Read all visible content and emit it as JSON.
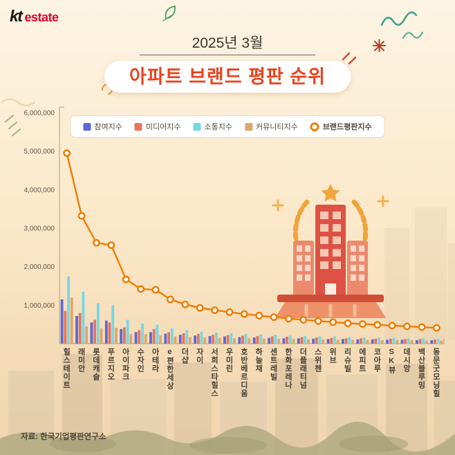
{
  "header": {
    "logo_kt": "kt",
    "logo_estate": "estate"
  },
  "title": {
    "period": "2025년 3월",
    "heading": "아파트 브랜드 평판 순위"
  },
  "footer": {
    "source": "자료: 한국기업평판연구소"
  },
  "theme": {
    "accent_red": "#ea431c",
    "line_orange": "#f07d00",
    "logo_red": "#e4002b"
  },
  "chart_data": {
    "type": "bar+line",
    "title": "아파트 브랜드 평판 순위 (2025년 3월)",
    "ylim": [
      0,
      6000000
    ],
    "yticks": [
      1000000,
      2000000,
      3000000,
      4000000,
      5000000,
      6000000
    ],
    "grid": false,
    "legend_position": "top",
    "categories": [
      "힐스테이트",
      "래미안",
      "롯데캐슬",
      "푸르지오",
      "아이파크",
      "수자인",
      "아테라",
      "e편한세상",
      "더샵",
      "자이",
      "서희스타힐스",
      "우미린",
      "호반베르디움",
      "하늘채",
      "센트레빌",
      "한화포레나",
      "더플래티넘",
      "스위첸",
      "위브",
      "리슈빌",
      "에피트",
      "코아루",
      "SK뷰",
      "데시앙",
      "백산블루밍",
      "동문굿모닝힐"
    ],
    "series": [
      {
        "name": "참여지수",
        "type": "bar",
        "color": "#5a68d8",
        "values": [
          1150000,
          720000,
          550000,
          600000,
          380000,
          300000,
          300000,
          260000,
          230000,
          210000,
          200000,
          190000,
          170000,
          160000,
          150000,
          140000,
          140000,
          130000,
          120000,
          120000,
          110000,
          110000,
          100000,
          100000,
          90000,
          90000
        ]
      },
      {
        "name": "미디어지수",
        "type": "bar",
        "color": "#e8745c",
        "values": [
          850000,
          800000,
          620000,
          550000,
          420000,
          350000,
          380000,
          300000,
          270000,
          250000,
          230000,
          220000,
          210000,
          200000,
          190000,
          180000,
          170000,
          160000,
          150000,
          140000,
          140000,
          130000,
          130000,
          120000,
          120000,
          110000
        ]
      },
      {
        "name": "소통지수",
        "type": "bar",
        "color": "#74d8e6",
        "values": [
          1750000,
          1350000,
          1050000,
          1000000,
          620000,
          520000,
          500000,
          400000,
          350000,
          310000,
          290000,
          270000,
          250000,
          240000,
          230000,
          210000,
          200000,
          190000,
          190000,
          170000,
          160000,
          160000,
          150000,
          140000,
          140000,
          130000
        ]
      },
      {
        "name": "커뮤니티지수",
        "type": "bar",
        "color": "#e0a66a",
        "values": [
          1200000,
          450000,
          400000,
          410000,
          250000,
          250000,
          220000,
          190000,
          170000,
          160000,
          150000,
          140000,
          140000,
          130000,
          120000,
          120000,
          110000,
          110000,
          100000,
          100000,
          100000,
          90000,
          90000,
          90000,
          80000,
          80000
        ]
      },
      {
        "name": "브랜드평판지수",
        "type": "line",
        "color": "#f07d00",
        "values": [
          4950000,
          3320000,
          2620000,
          2560000,
          1670000,
          1420000,
          1400000,
          1150000,
          1020000,
          930000,
          870000,
          820000,
          770000,
          730000,
          690000,
          650000,
          620000,
          590000,
          560000,
          530000,
          510000,
          490000,
          470000,
          450000,
          430000,
          410000
        ]
      }
    ]
  }
}
